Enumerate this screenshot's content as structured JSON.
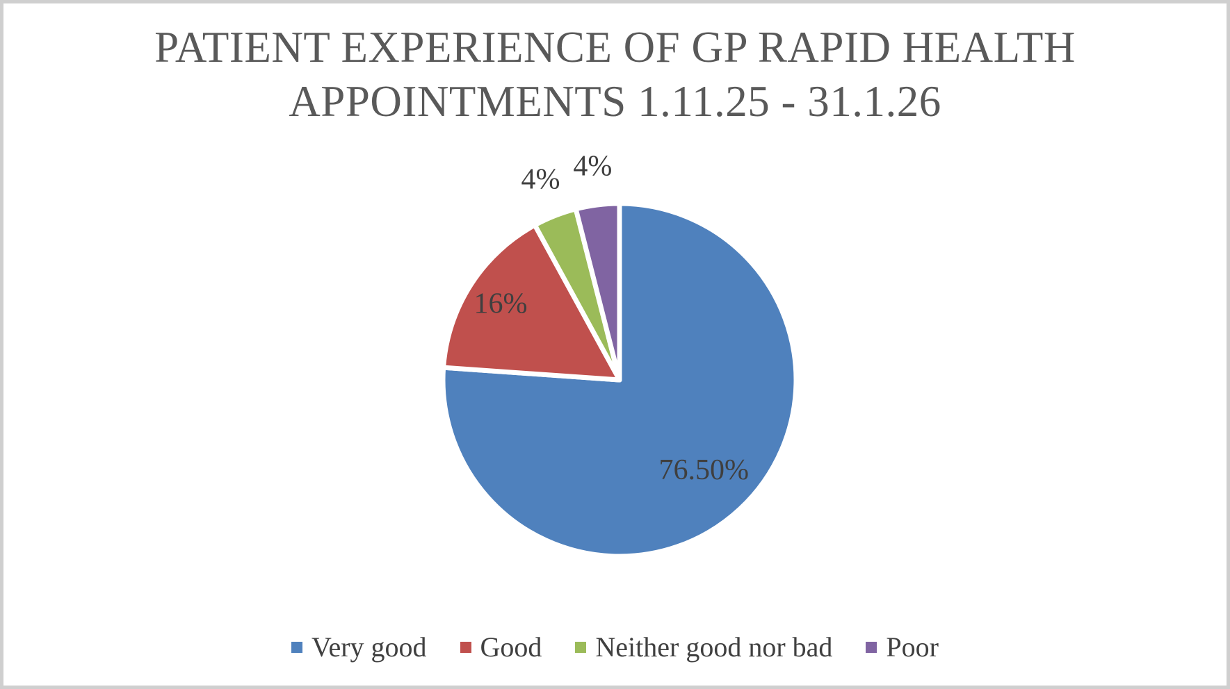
{
  "window": {
    "background": "#ffffff",
    "frame_color": "#cfcfcf"
  },
  "chart_data": {
    "type": "pie",
    "title": "PATIENT EXPERIENCE OF GP RAPID HEALTH APPOINTMENTS 1.11.25 - 31.1.26",
    "categories": [
      "Very good",
      "Good",
      "Neither good nor bad",
      "Poor"
    ],
    "values": [
      76.5,
      16,
      4,
      4
    ],
    "data_labels": [
      "76.50%",
      "16%",
      "4%",
      "4%"
    ],
    "colors": [
      "#4f81bd",
      "#c0504d",
      "#9bbb59",
      "#8064a2"
    ],
    "slice_border_color": "#ffffff",
    "title_color": "#595959",
    "label_color": "#3f3f3f",
    "legend_text_color": "#404040",
    "legend_position": "bottom",
    "start_angle_deg": 0,
    "direction": "clockwise"
  }
}
